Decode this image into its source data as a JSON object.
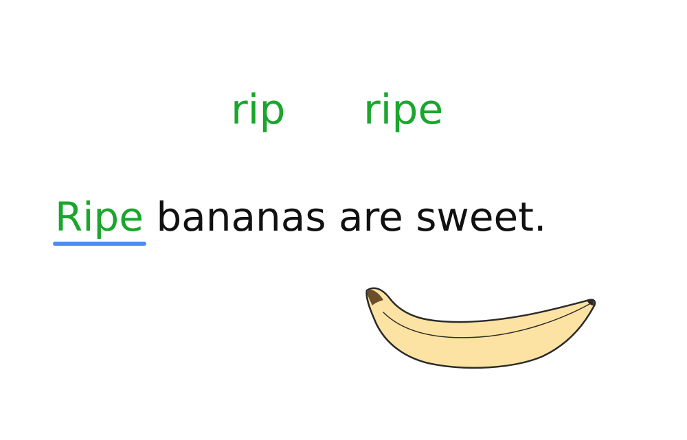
{
  "colors": {
    "choice_text": "#1aa62c",
    "sentence_text": "#111111",
    "underline": "#4a8df0",
    "banana_fill": "#fde3a3",
    "banana_outline": "#2a2a2a",
    "banana_tip": "#6b4e2a"
  },
  "choices": [
    {
      "label": "rip"
    },
    {
      "label": "ripe"
    }
  ],
  "sentence": {
    "answer_word": "Ripe",
    "rest": " bananas are sweet."
  },
  "illustration": {
    "icon": "banana-icon"
  }
}
